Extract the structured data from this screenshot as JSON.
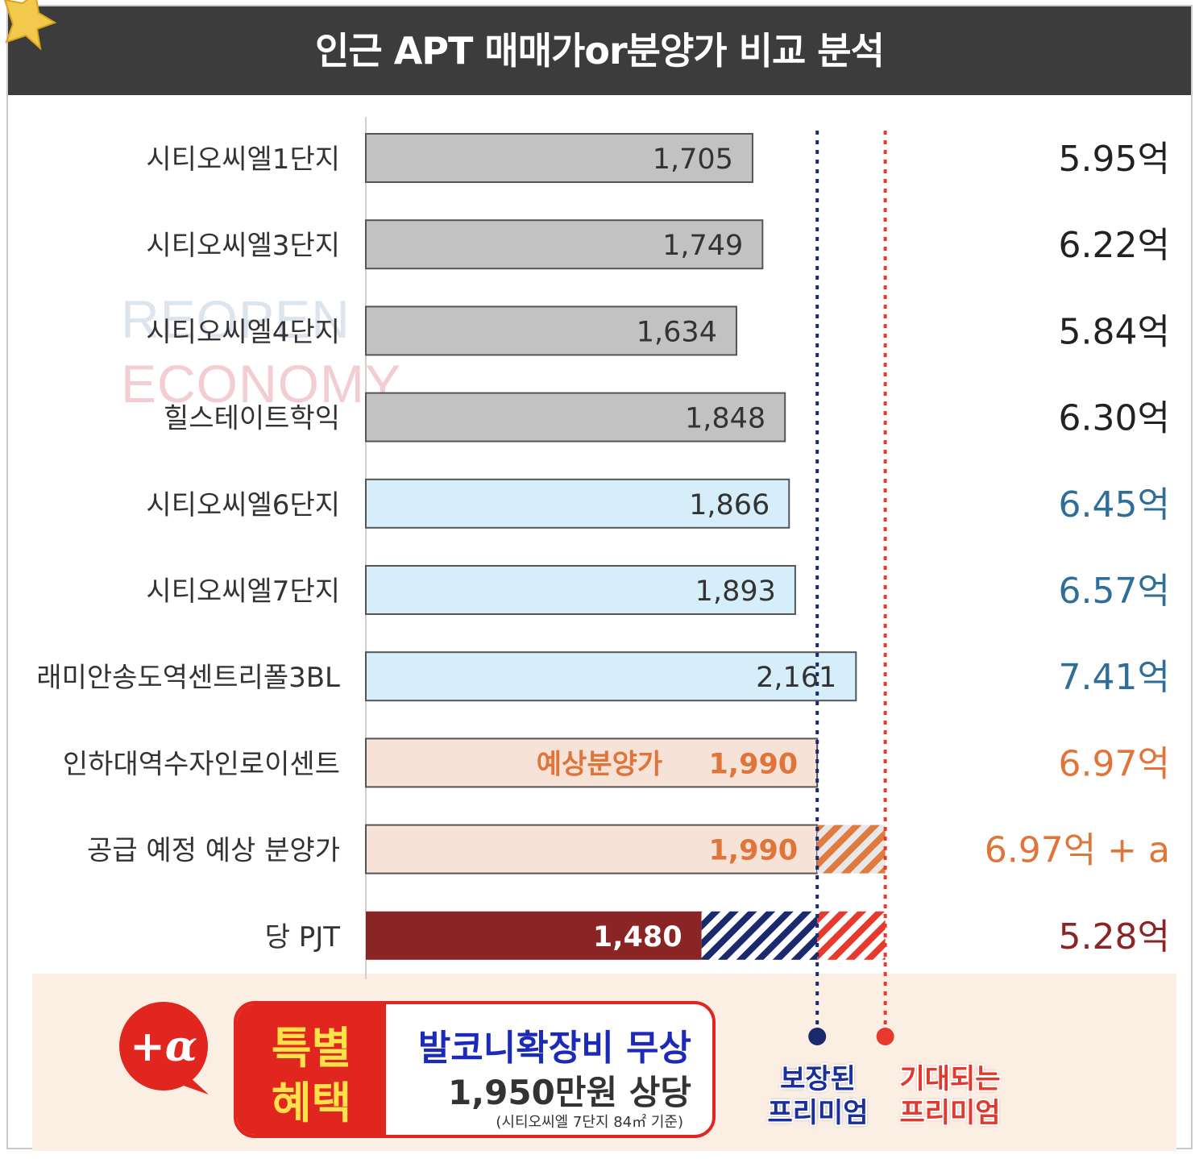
{
  "title": "인근 APT 매매가or분양가 비교 분석",
  "watermark": {
    "line1": "REOPEN",
    "line2": "ECONOMY"
  },
  "colors": {
    "gray_bar": "#c2c2c2",
    "blue_bar": "#d6eefa",
    "peach_bar": "#f6e2d6",
    "project_bar": "#8b2424",
    "black_text": "#222222",
    "blue_text": "#2f6e98",
    "orange_text": "#e0753a",
    "project_text": "#8b2424",
    "guaranteed_line": "#1a2a6c",
    "expected_line": "#e63a2e"
  },
  "chart_data": {
    "type": "bar",
    "orientation": "horizontal",
    "categories": [
      "시티오씨엘1단지",
      "시티오씨엘3단지",
      "시티오씨엘4단지",
      "힐스테이트학익",
      "시티오씨엘6단지",
      "시티오씨엘7단지",
      "래미안송도역센트리폴3BL",
      "인하대역수자인로이센트",
      "공급 예정 예상 분양가",
      "당 PJT"
    ],
    "values": [
      1705,
      1749,
      1634,
      1848,
      1866,
      1893,
      2161,
      1990,
      1990,
      1480
    ],
    "value_labels": [
      "1,705",
      "1,749",
      "1,634",
      "1,848",
      "1,866",
      "1,893",
      "2,161",
      "1,990",
      "1,990",
      "1,480"
    ],
    "bar_prefix": [
      "",
      "",
      "",
      "",
      "",
      "",
      "",
      "예상분양가",
      "",
      ""
    ],
    "price_labels": [
      "5.95억",
      "6.22억",
      "5.84억",
      "6.30억",
      "6.45억",
      "6.57억",
      "7.41억",
      "6.97억",
      "6.97억 + a",
      "5.28억"
    ],
    "bar_style": [
      "gray",
      "gray",
      "gray",
      "gray",
      "blue",
      "blue",
      "blue",
      "peach",
      "peach",
      "project"
    ],
    "reference_lines": [
      {
        "name": "보장된 프리미엄",
        "value": 1990
      },
      {
        "name": "기대되는 프리미엄",
        "value": 2290
      }
    ]
  },
  "benefit": {
    "tag_line1": "특별",
    "tag_line2": "혜택",
    "title": "발코니확장비 무상",
    "value": "1,950만원 상당",
    "note": "(시티오씨엘 7단지 84㎡ 기준)",
    "badge": "+α"
  },
  "premium_labels": {
    "guaranteed": [
      "보장된",
      "프리미엄"
    ],
    "expected": [
      "기대되는",
      "프리미엄"
    ]
  }
}
